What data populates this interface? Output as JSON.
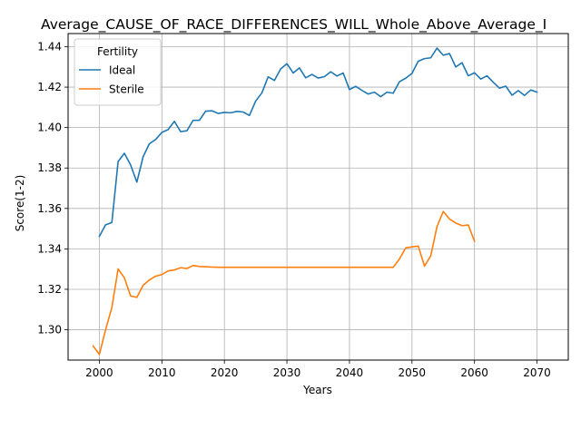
{
  "chart_data": {
    "type": "line",
    "title": "Average_CAUSE_OF_RACE_DIFFERENCES_WILL_Whole_Above_Average_I",
    "xlabel": "Years",
    "ylabel": "Score(1-2)",
    "xlim": [
      1995,
      2075
    ],
    "ylim": [
      1.285,
      1.4465
    ],
    "xticks": [
      2000,
      2010,
      2020,
      2030,
      2040,
      2050,
      2060,
      2070
    ],
    "yticks": [
      1.3,
      1.32,
      1.34,
      1.36,
      1.38,
      1.4,
      1.42,
      1.44
    ],
    "ytick_labels": [
      "1.30",
      "1.32",
      "1.34",
      "1.36",
      "1.38",
      "1.40",
      "1.42",
      "1.44"
    ],
    "grid": true,
    "legend": {
      "title": "Fertility",
      "placement": "top-left"
    },
    "series": [
      {
        "name": "Ideal",
        "color": "#1f77b4",
        "x": [
          2000,
          2001,
          2002,
          2003,
          2004,
          2005,
          2006,
          2007,
          2008,
          2009,
          2010,
          2011,
          2012,
          2013,
          2014,
          2015,
          2016,
          2017,
          2018,
          2019,
          2020,
          2021,
          2022,
          2023,
          2024,
          2025,
          2026,
          2027,
          2028,
          2029,
          2030,
          2031,
          2032,
          2033,
          2034,
          2035,
          2036,
          2037,
          2038,
          2039,
          2040,
          2041,
          2042,
          2043,
          2044,
          2045,
          2046,
          2047,
          2048,
          2049,
          2050,
          2051,
          2052,
          2053,
          2054,
          2055,
          2056,
          2057,
          2058,
          2059,
          2060,
          2061,
          2062,
          2063,
          2064,
          2065,
          2066,
          2067,
          2068,
          2069,
          2070
        ],
        "values": [
          1.3462,
          1.3519,
          1.353,
          1.3832,
          1.3873,
          1.3815,
          1.373,
          1.3856,
          1.392,
          1.3941,
          1.3976,
          1.399,
          1.4031,
          1.398,
          1.3984,
          1.4036,
          1.4036,
          1.4081,
          1.4083,
          1.407,
          1.4075,
          1.4073,
          1.408,
          1.4077,
          1.406,
          1.4131,
          1.4172,
          1.4251,
          1.4233,
          1.429,
          1.4316,
          1.427,
          1.4295,
          1.4246,
          1.4263,
          1.4245,
          1.4252,
          1.4276,
          1.4255,
          1.427,
          1.4188,
          1.4204,
          1.4184,
          1.4166,
          1.4175,
          1.4153,
          1.4175,
          1.417,
          1.4227,
          1.4244,
          1.4268,
          1.4328,
          1.4341,
          1.4345,
          1.4393,
          1.4358,
          1.4366,
          1.43,
          1.4321,
          1.4256,
          1.4271,
          1.424,
          1.4256,
          1.4224,
          1.4195,
          1.4205,
          1.416,
          1.4183,
          1.4159,
          1.4186,
          1.4175
        ]
      },
      {
        "name": "Sterile",
        "color": "#ff7f0e",
        "x": [
          1999,
          2000,
          2001,
          2002,
          2003,
          2004,
          2005,
          2006,
          2007,
          2008,
          2009,
          2010,
          2011,
          2012,
          2013,
          2014,
          2015,
          2016,
          2017,
          2018,
          2019,
          2020,
          2021,
          2022,
          2023,
          2024,
          2025,
          2026,
          2027,
          2028,
          2029,
          2030,
          2031,
          2032,
          2033,
          2034,
          2035,
          2036,
          2037,
          2038,
          2039,
          2040,
          2041,
          2042,
          2043,
          2044,
          2045,
          2046,
          2047,
          2048,
          2049,
          2050,
          2051,
          2052,
          2053,
          2054,
          2055,
          2056,
          2057,
          2058,
          2059,
          2060
        ],
        "values": [
          1.292,
          1.2878,
          1.3,
          1.311,
          1.3301,
          1.3257,
          1.3167,
          1.316,
          1.322,
          1.3246,
          1.3265,
          1.3273,
          1.3291,
          1.3296,
          1.3307,
          1.3303,
          1.3318,
          1.3313,
          1.3312,
          1.331,
          1.3309,
          1.3309,
          1.3309,
          1.3309,
          1.3309,
          1.3309,
          1.3309,
          1.3309,
          1.3309,
          1.3309,
          1.3309,
          1.3309,
          1.3309,
          1.3309,
          1.3309,
          1.3309,
          1.3309,
          1.3309,
          1.3309,
          1.3309,
          1.3309,
          1.3309,
          1.3309,
          1.3309,
          1.3309,
          1.3309,
          1.3309,
          1.3309,
          1.3309,
          1.335,
          1.3405,
          1.341,
          1.3414,
          1.3315,
          1.3365,
          1.351,
          1.3585,
          1.3548,
          1.3528,
          1.3515,
          1.3518,
          1.3438
        ]
      }
    ]
  }
}
